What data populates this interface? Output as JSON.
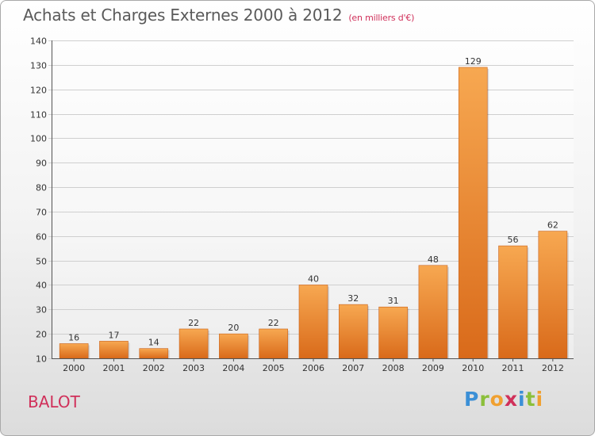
{
  "title": "Achats et Charges Externes 2000 à 2012",
  "subtitle": "(en milliers d'€)",
  "commune": "BALOT",
  "brand": {
    "letters": [
      {
        "ch": "P",
        "color": "#3b8fd6"
      },
      {
        "ch": "r",
        "color": "#8bbf3a"
      },
      {
        "ch": "o",
        "color": "#f0a030"
      },
      {
        "ch": "x",
        "color": "#d0305a"
      },
      {
        "ch": "i",
        "color": "#3b8fd6"
      },
      {
        "ch": "t",
        "color": "#8bbf3a"
      },
      {
        "ch": "i",
        "color": "#f0a030"
      }
    ]
  },
  "colors": {
    "bar_light": "#f7a851",
    "bar_dark": "#d96a1a",
    "title": "#5a5a5a",
    "accent": "#d0305a"
  },
  "chart_data": {
    "type": "bar",
    "categories": [
      "2000",
      "2001",
      "2002",
      "2003",
      "2004",
      "2005",
      "2006",
      "2007",
      "2008",
      "2009",
      "2010",
      "2011",
      "2012"
    ],
    "values": [
      16,
      17,
      14,
      22,
      20,
      22,
      40,
      32,
      31,
      48,
      129,
      56,
      62
    ],
    "ylim": [
      10,
      140
    ],
    "yticks": [
      10,
      20,
      30,
      40,
      50,
      60,
      70,
      80,
      90,
      100,
      110,
      120,
      130,
      140
    ],
    "grid": true
  }
}
